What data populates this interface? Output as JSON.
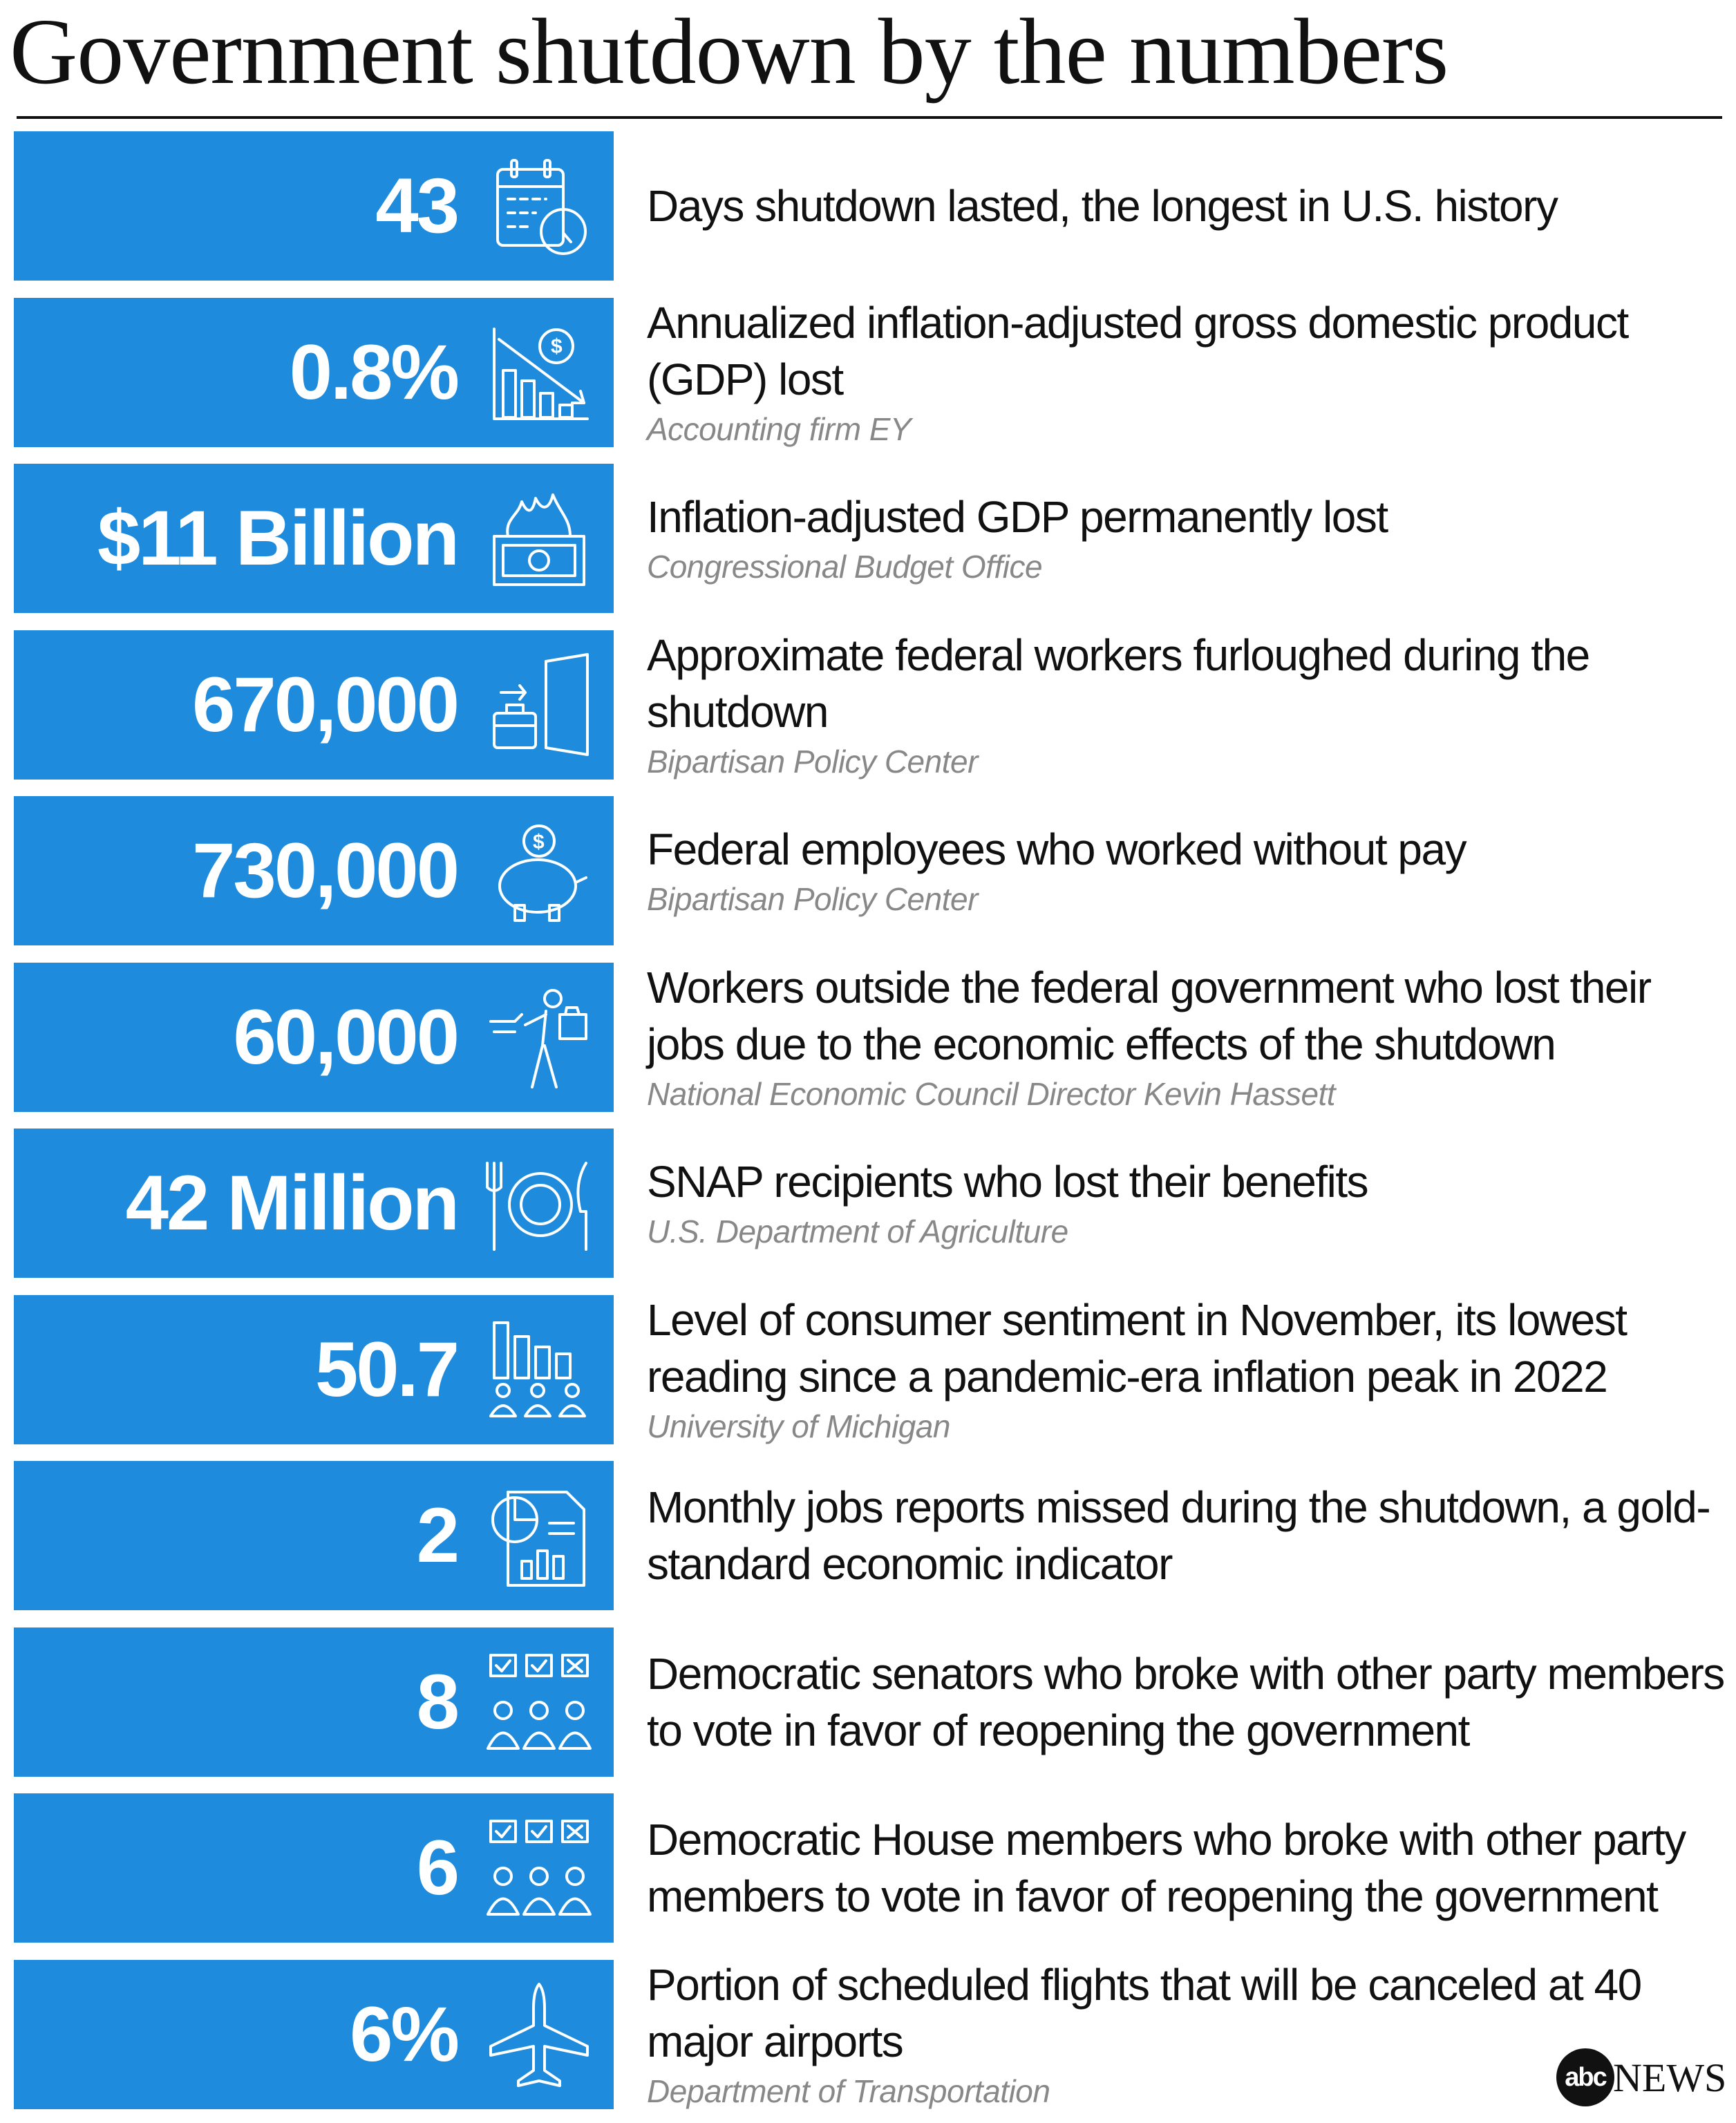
{
  "title": "Government shutdown by the numbers",
  "accent_color": "#1e8bdd",
  "rows": [
    {
      "value": "43",
      "icon": "calendar-clock-icon",
      "description": "Days shutdown lasted, the longest in U.S. history",
      "source": ""
    },
    {
      "value": "0.8%",
      "icon": "declining-chart-dollar-icon",
      "description": "Annualized inflation-adjusted gross domestic product (GDP) lost",
      "source": "Accounting firm EY"
    },
    {
      "value": "$11 Billion",
      "icon": "burning-money-icon",
      "description": "Inflation-adjusted GDP permanently lost",
      "source": "Congressional Budget Office"
    },
    {
      "value": "670,000",
      "icon": "briefcase-door-icon",
      "description": "Approximate federal workers furloughed during the shutdown",
      "source": "Bipartisan Policy Center"
    },
    {
      "value": "730,000",
      "icon": "piggy-bank-icon",
      "description": "Federal employees who worked without pay",
      "source": "Bipartisan Policy Center"
    },
    {
      "value": "60,000",
      "icon": "fired-worker-icon",
      "description": "Workers outside the federal government who lost their jobs due to the economic effects of the shutdown",
      "source": "National Economic Council Director Kevin Hassett"
    },
    {
      "value": "42 Million",
      "icon": "plate-utensils-icon",
      "description": "SNAP recipients who lost their benefits",
      "source": "U.S. Department of Agriculture"
    },
    {
      "value": "50.7",
      "icon": "people-chart-icon",
      "description": "Level of consumer sentiment in November, its lowest reading since a pandemic-era inflation peak in 2022",
      "source": "University of Michigan"
    },
    {
      "value": "2",
      "icon": "report-chart-icon",
      "description": "Monthly jobs reports missed during the shutdown, a gold-standard economic indicator",
      "source": ""
    },
    {
      "value": "8",
      "icon": "voters-icon",
      "description": "Democratic senators who broke with other party members to vote in favor of reopening the government",
      "source": ""
    },
    {
      "value": "6",
      "icon": "voters-icon",
      "description": "Democratic House members who broke with other party members to vote in favor of reopening the government",
      "source": ""
    },
    {
      "value": "6%",
      "icon": "airplane-icon",
      "description": "Portion of scheduled flights that will be canceled at 40 major airports",
      "source": "Department of Transportation"
    }
  ],
  "logo": {
    "circle": "abc",
    "word": "NEWS"
  }
}
